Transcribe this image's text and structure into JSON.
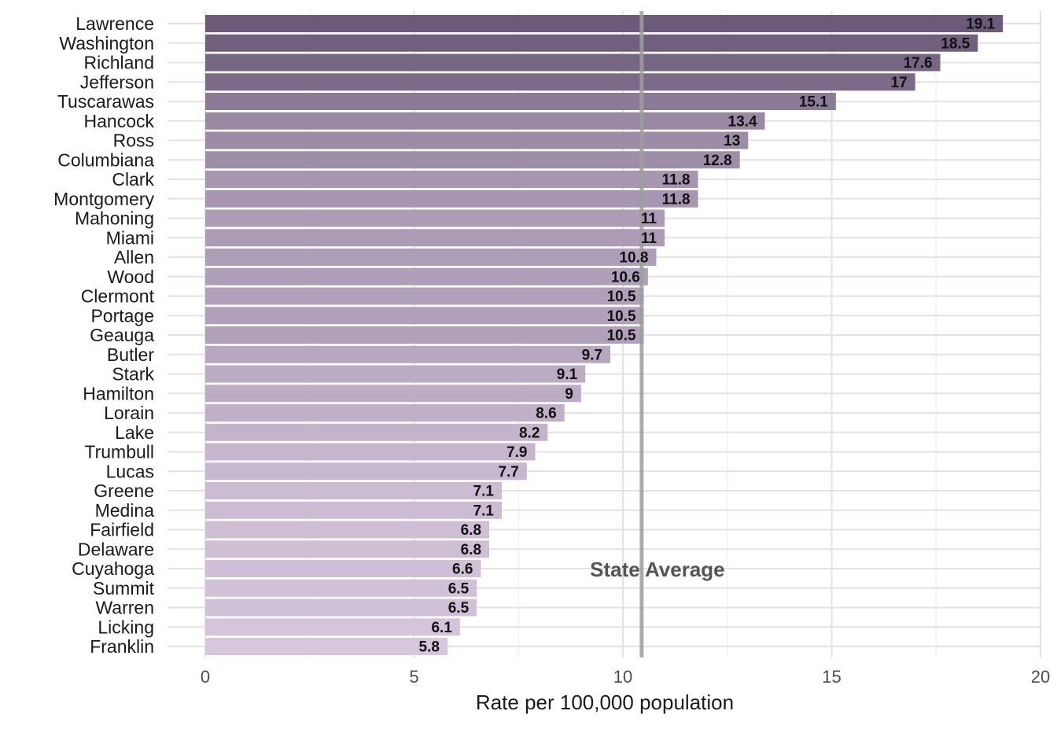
{
  "chart_data": {
    "type": "bar",
    "orientation": "horizontal",
    "categories": [
      "Lawrence",
      "Washington",
      "Richland",
      "Jefferson",
      "Tuscarawas",
      "Hancock",
      "Ross",
      "Columbiana",
      "Clark",
      "Montgomery",
      "Mahoning",
      "Miami",
      "Allen",
      "Wood",
      "Clermont",
      "Portage",
      "Geauga",
      "Butler",
      "Stark",
      "Hamilton",
      "Lorain",
      "Lake",
      "Trumbull",
      "Lucas",
      "Greene",
      "Medina",
      "Fairfield",
      "Delaware",
      "Cuyahoga",
      "Summit",
      "Warren",
      "Licking",
      "Franklin"
    ],
    "values": [
      19.1,
      18.5,
      17.6,
      17,
      15.1,
      13.4,
      13,
      12.8,
      11.8,
      11.8,
      11,
      11,
      10.8,
      10.6,
      10.5,
      10.5,
      10.5,
      9.7,
      9.1,
      9,
      8.6,
      8.2,
      7.9,
      7.7,
      7.1,
      7.1,
      6.8,
      6.8,
      6.6,
      6.5,
      6.5,
      6.1,
      5.8
    ],
    "data_labels": [
      "19.1",
      "18.5",
      "17.6",
      "17",
      "15.1",
      "13.4",
      "13",
      "12.8",
      "11.8",
      "11.8",
      "11",
      "11",
      "10.8",
      "10.6",
      "10.5",
      "10.5",
      "10.5",
      "9.7",
      "9.1",
      "9",
      "8.6",
      "8.2",
      "7.9",
      "7.7",
      "7.1",
      "7.1",
      "6.8",
      "6.8",
      "6.6",
      "6.5",
      "6.5",
      "6.1",
      "5.8"
    ],
    "xlabel": "Rate per 100,000 population",
    "ylabel": "",
    "xlim": [
      0,
      20
    ],
    "xticks": [
      0,
      5,
      10,
      15,
      20
    ],
    "xtick_labels": [
      "0",
      "5",
      "10",
      "15",
      "20"
    ],
    "reference_line": {
      "value": 10.45,
      "label": "State Average",
      "color": "#999999"
    },
    "grid": true,
    "colors": {
      "bar_dark": "#6b5a78",
      "bar_light": "#d6c7dd",
      "grid": "#e5e5e5"
    }
  }
}
